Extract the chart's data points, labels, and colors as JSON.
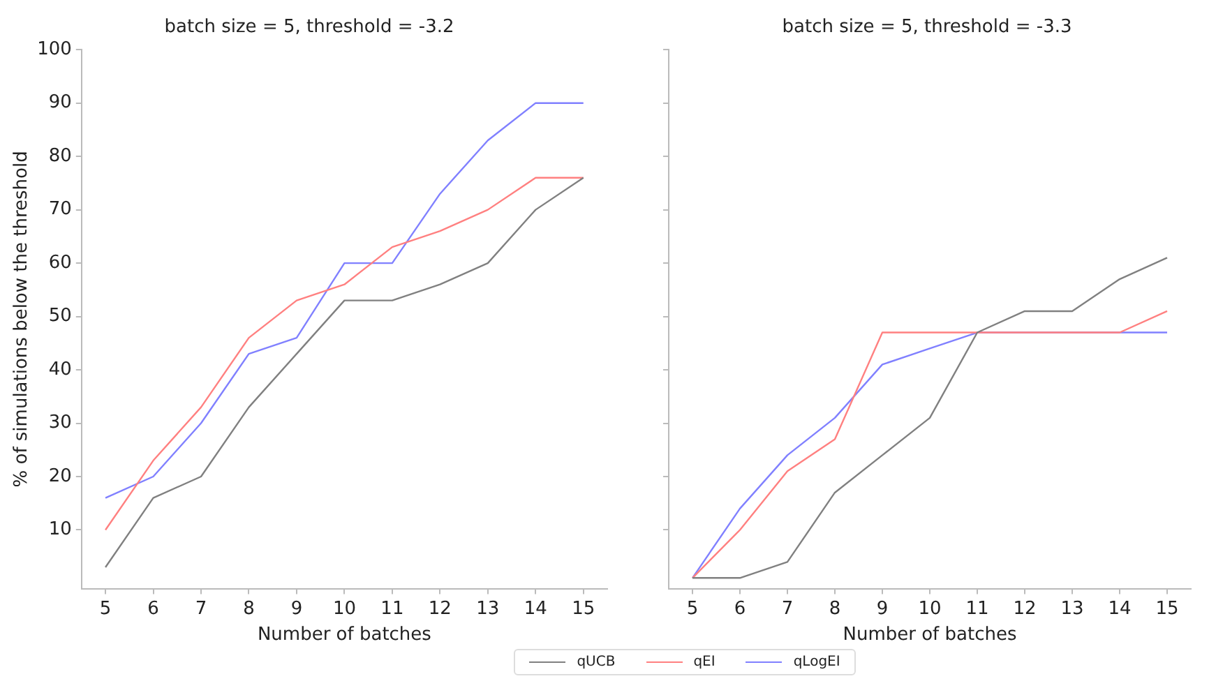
{
  "chart_data": [
    {
      "type": "line",
      "title": "batch size = 5, threshold = -3.2",
      "xlabel": "Number of batches",
      "ylabel": "% of simulations below the threshold",
      "x": [
        5,
        6,
        7,
        8,
        9,
        10,
        11,
        12,
        13,
        14,
        15
      ],
      "xlim": [
        4.5,
        15.5
      ],
      "xticks": [
        5,
        6,
        7,
        8,
        9,
        10,
        11,
        12,
        13,
        14,
        15
      ],
      "ylim": [
        -1,
        100
      ],
      "yticks": [
        10,
        20,
        30,
        40,
        50,
        60,
        70,
        80,
        90,
        100
      ],
      "grid": false,
      "marker": "none",
      "line_style": "solid",
      "legend": "bottom",
      "series": [
        {
          "name": "qUCB",
          "color": "#808080",
          "values": [
            3,
            16,
            20,
            33,
            43,
            53,
            53,
            56,
            60,
            70,
            76
          ]
        },
        {
          "name": "qEI",
          "color": "#ff8080",
          "values": [
            10,
            23,
            33,
            46,
            53,
            56,
            63,
            66,
            70,
            76,
            76
          ]
        },
        {
          "name": "qLogEI",
          "color": "#8080ff",
          "values": [
            16,
            20,
            30,
            43,
            46,
            60,
            60,
            73,
            83,
            90,
            90
          ]
        }
      ]
    },
    {
      "type": "line",
      "title": "batch size = 5, threshold = -3.3",
      "xlabel": "Number of batches",
      "x": [
        5,
        6,
        7,
        8,
        9,
        10,
        11,
        12,
        13,
        14,
        15
      ],
      "xlim": [
        4.5,
        15.5
      ],
      "xticks": [
        5,
        6,
        7,
        8,
        9,
        10,
        11,
        12,
        13,
        14,
        15
      ],
      "ylim": [
        -1,
        100
      ],
      "yticks": [
        10,
        20,
        30,
        40,
        50,
        60,
        70,
        80,
        90,
        100
      ],
      "tick_labels": "x",
      "grid": false,
      "marker": "none",
      "line_style": "solid",
      "legend": "bottom",
      "series": [
        {
          "name": "qUCB",
          "color": "#808080",
          "values": [
            1,
            1,
            4,
            17,
            24,
            31,
            47,
            51,
            51,
            57,
            61
          ]
        },
        {
          "name": "qEI",
          "color": "#ff8080",
          "values": [
            1,
            10,
            21,
            27,
            47,
            47,
            47,
            47,
            47,
            47,
            51
          ]
        },
        {
          "name": "qLogEI",
          "color": "#8080ff",
          "values": [
            1,
            14,
            24,
            31,
            41,
            44,
            47,
            47,
            47,
            47,
            47
          ]
        }
      ]
    }
  ]
}
